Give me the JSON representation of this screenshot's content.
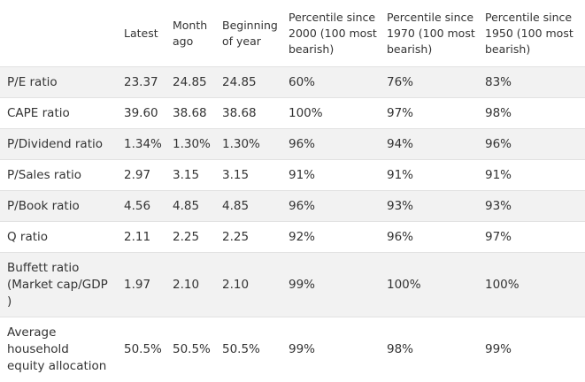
{
  "table": {
    "columns": [
      "Latest",
      "Month ago",
      "Beginning of year",
      "Percentile since 2000 (100 most bearish)",
      "Percentile since 1970 (100 most bearish)",
      "Percentile since 1950 (100 most bearish)"
    ],
    "rows": [
      [
        "P/E ratio",
        "23.37",
        "24.85",
        "24.85",
        "60%",
        "76%",
        "83%"
      ],
      [
        "CAPE ratio",
        "39.60",
        "38.68",
        "38.68",
        "100%",
        "97%",
        "98%"
      ],
      [
        "P/Dividend ratio",
        "1.34%",
        "1.30%",
        "1.30%",
        "96%",
        "94%",
        "96%"
      ],
      [
        "P/Sales ratio",
        "2.97",
        "3.15",
        "3.15",
        "91%",
        "91%",
        "91%"
      ],
      [
        "P/Book ratio",
        "4.56",
        "4.85",
        "4.85",
        "96%",
        "93%",
        "93%"
      ],
      [
        "Q ratio",
        "2.11",
        "2.25",
        "2.25",
        "92%",
        "96%",
        "97%"
      ],
      [
        "Buffett ratio (Market cap/GDP )",
        "1.97",
        "2.10",
        "2.10",
        "99%",
        "100%",
        "100%"
      ],
      [
        "Average household equity allocation",
        "50.5%",
        "50.5%",
        "50.5%",
        "99%",
        "98%",
        "99%"
      ]
    ]
  }
}
